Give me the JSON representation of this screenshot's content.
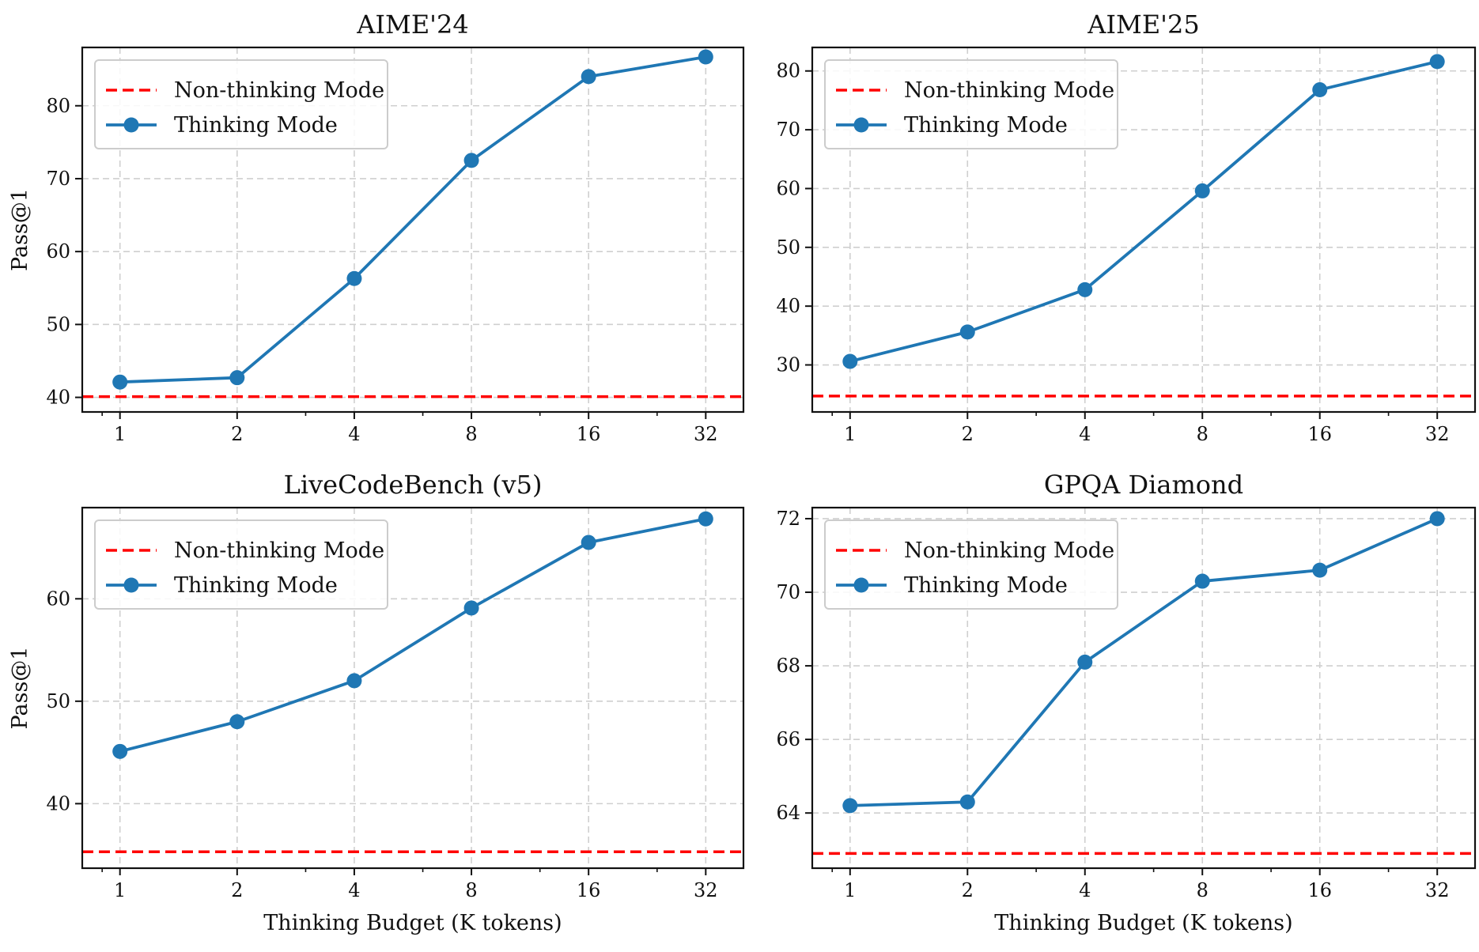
{
  "chart_data": [
    {
      "type": "line",
      "title": "AIME'24",
      "xlabel": "",
      "ylabel": "Pass@1",
      "x_scale": "log2",
      "x": [
        1,
        2,
        4,
        8,
        16,
        32
      ],
      "x_tick_labels": [
        "1",
        "2",
        "4",
        "8",
        "16",
        "32"
      ],
      "xlim": [
        0.8,
        40
      ],
      "ylim": [
        38,
        88
      ],
      "y_ticks": [
        40,
        50,
        60,
        70,
        80
      ],
      "y_tick_labels": [
        "40",
        "50",
        "60",
        "70",
        "80"
      ],
      "grid": true,
      "legend_position": "top-left",
      "series": [
        {
          "name": "Non-thinking Mode",
          "style": "dashed-hline",
          "color": "#ff0000",
          "value": 40.1
        },
        {
          "name": "Thinking Mode",
          "style": "line-marker",
          "color": "#1f77b4",
          "values": [
            42.1,
            42.7,
            56.3,
            72.5,
            84.0,
            86.7
          ]
        }
      ]
    },
    {
      "type": "line",
      "title": "AIME'25",
      "xlabel": "",
      "ylabel": "",
      "x_scale": "log2",
      "x": [
        1,
        2,
        4,
        8,
        16,
        32
      ],
      "x_tick_labels": [
        "1",
        "2",
        "4",
        "8",
        "16",
        "32"
      ],
      "xlim": [
        0.8,
        40
      ],
      "ylim": [
        22,
        84
      ],
      "y_ticks": [
        30,
        40,
        50,
        60,
        70,
        80
      ],
      "y_tick_labels": [
        "30",
        "40",
        "50",
        "60",
        "70",
        "80"
      ],
      "grid": true,
      "legend_position": "top-left",
      "series": [
        {
          "name": "Non-thinking Mode",
          "style": "dashed-hline",
          "color": "#ff0000",
          "value": 24.7
        },
        {
          "name": "Thinking Mode",
          "style": "line-marker",
          "color": "#1f77b4",
          "values": [
            30.6,
            35.6,
            42.8,
            59.6,
            76.8,
            81.6
          ]
        }
      ]
    },
    {
      "type": "line",
      "title": "LiveCodeBench (v5)",
      "xlabel": "Thinking Budget (K tokens)",
      "ylabel": "Pass@1",
      "x_scale": "log2",
      "x": [
        1,
        2,
        4,
        8,
        16,
        32
      ],
      "x_tick_labels": [
        "1",
        "2",
        "4",
        "8",
        "16",
        "32"
      ],
      "xlim": [
        0.8,
        40
      ],
      "ylim": [
        33.7,
        68.9
      ],
      "y_ticks": [
        40,
        50,
        60
      ],
      "y_tick_labels": [
        "40",
        "50",
        "60"
      ],
      "grid": true,
      "legend_position": "top-left",
      "series": [
        {
          "name": "Non-thinking Mode",
          "style": "dashed-hline",
          "color": "#ff0000",
          "value": 35.3
        },
        {
          "name": "Thinking Mode",
          "style": "line-marker",
          "color": "#1f77b4",
          "values": [
            45.1,
            48.0,
            52.0,
            59.1,
            65.5,
            67.8
          ]
        }
      ]
    },
    {
      "type": "line",
      "title": "GPQA Diamond",
      "xlabel": "Thinking Budget (K tokens)",
      "ylabel": "",
      "x_scale": "log2",
      "x": [
        1,
        2,
        4,
        8,
        16,
        32
      ],
      "x_tick_labels": [
        "1",
        "2",
        "4",
        "8",
        "16",
        "32"
      ],
      "xlim": [
        0.8,
        40
      ],
      "ylim": [
        62.5,
        72.3
      ],
      "y_ticks": [
        64,
        66,
        68,
        70,
        72
      ],
      "y_tick_labels": [
        "64",
        "66",
        "68",
        "70",
        "72"
      ],
      "grid": true,
      "legend_position": "top-left",
      "series": [
        {
          "name": "Non-thinking Mode",
          "style": "dashed-hline",
          "color": "#ff0000",
          "value": 62.9
        },
        {
          "name": "Thinking Mode",
          "style": "line-marker",
          "color": "#1f77b4",
          "values": [
            64.2,
            64.3,
            68.1,
            70.3,
            70.6,
            72.0
          ]
        }
      ]
    }
  ]
}
